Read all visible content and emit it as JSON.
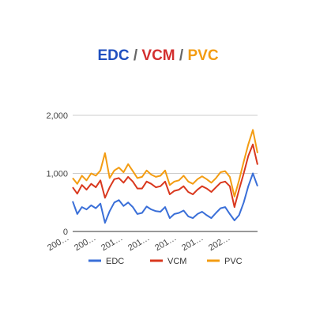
{
  "title": {
    "part1": "EDC",
    "sep1": " / ",
    "part2": "VCM",
    "sep2": " / ",
    "part3": "PVC",
    "colors": [
      "#1f4fbf",
      "#d32f2f",
      "#f39c12"
    ],
    "sep_color": "#666666"
  },
  "chart_data": {
    "type": "line",
    "title": "EDC / VCM / PVC",
    "ylim": [
      0,
      2000
    ],
    "yticks": [
      0,
      1000,
      2000
    ],
    "ytick_labels": [
      "0",
      "1,000",
      "2,000"
    ],
    "xtick_labels": [
      "200…",
      "200…",
      "201…",
      "201…",
      "201…",
      "201…",
      "202…"
    ],
    "grid": true,
    "legend_position": "bottom",
    "x": [
      0,
      1,
      2,
      3,
      4,
      5,
      6,
      7,
      8,
      9,
      10,
      11,
      12,
      13,
      14,
      15,
      16,
      17,
      18,
      19,
      20,
      21,
      22,
      23,
      24,
      25,
      26,
      27,
      28,
      29,
      30,
      31,
      32,
      33,
      34,
      35,
      36,
      37,
      38,
      39,
      40
    ],
    "series": [
      {
        "name": "EDC",
        "color": "#3a6fd8",
        "values": [
          520,
          300,
          420,
          380,
          450,
          400,
          480,
          150,
          350,
          500,
          540,
          440,
          500,
          420,
          300,
          320,
          430,
          380,
          350,
          340,
          420,
          230,
          300,
          320,
          360,
          260,
          230,
          300,
          340,
          280,
          230,
          320,
          400,
          420,
          300,
          190,
          280,
          500,
          780,
          1000,
          780
        ]
      },
      {
        "name": "VCM",
        "color": "#d9381e",
        "values": [
          760,
          650,
          800,
          720,
          820,
          760,
          880,
          580,
          760,
          900,
          920,
          840,
          940,
          860,
          740,
          740,
          860,
          820,
          760,
          780,
          860,
          640,
          700,
          720,
          780,
          680,
          640,
          720,
          780,
          740,
          680,
          760,
          840,
          860,
          780,
          420,
          720,
          1000,
          1300,
          1500,
          1150
        ]
      },
      {
        "name": "PVC",
        "color": "#f39c12",
        "values": [
          920,
          820,
          960,
          880,
          1000,
          960,
          1050,
          1350,
          920,
          1050,
          1100,
          1020,
          1160,
          1040,
          920,
          940,
          1050,
          980,
          940,
          960,
          1050,
          800,
          860,
          880,
          960,
          860,
          820,
          900,
          950,
          900,
          840,
          920,
          1020,
          1040,
          940,
          600,
          880,
          1200,
          1500,
          1750,
          1350
        ]
      }
    ]
  }
}
